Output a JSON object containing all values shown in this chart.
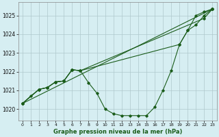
{
  "title": "Graphe pression niveau de la mer (hPa)",
  "xlim": [
    -0.5,
    23.5
  ],
  "ylim": [
    1019.4,
    1025.7
  ],
  "yticks": [
    1020,
    1021,
    1022,
    1023,
    1024,
    1025
  ],
  "xticks": [
    0,
    1,
    2,
    3,
    4,
    5,
    6,
    7,
    8,
    9,
    10,
    11,
    12,
    13,
    14,
    15,
    16,
    17,
    18,
    19,
    20,
    21,
    22,
    23
  ],
  "background_color": "#d6eef2",
  "grid_color": "#aec8cc",
  "line_color": "#1a5c1a",
  "main_x": [
    0,
    1,
    2,
    3,
    4,
    5,
    6,
    7,
    8,
    9,
    10,
    11,
    12,
    13,
    14,
    15,
    16,
    17,
    18,
    19,
    20,
    21,
    22,
    23
  ],
  "main_y": [
    1020.3,
    1020.7,
    1021.05,
    1021.15,
    1021.45,
    1021.5,
    1022.1,
    1022.05,
    1021.4,
    1020.85,
    1020.0,
    1019.75,
    1019.65,
    1019.65,
    1019.65,
    1019.65,
    1020.1,
    1021.0,
    1022.05,
    1023.45,
    1024.2,
    1025.0,
    1025.2,
    1025.35
  ],
  "line2_x": [
    0,
    2,
    3,
    4,
    5,
    6,
    7,
    22,
    23
  ],
  "line2_y": [
    1020.3,
    1021.05,
    1021.15,
    1021.45,
    1021.5,
    1022.1,
    1022.05,
    1024.85,
    1025.35
  ],
  "line3_x": [
    0,
    23
  ],
  "line3_y": [
    1020.3,
    1025.35
  ],
  "line4_x": [
    0,
    2,
    3,
    4,
    5,
    6,
    7,
    19,
    20,
    21,
    22,
    23
  ],
  "line4_y": [
    1020.3,
    1021.05,
    1021.15,
    1021.45,
    1021.5,
    1022.1,
    1022.05,
    1023.45,
    1024.2,
    1024.5,
    1025.0,
    1025.35
  ],
  "figsize": [
    3.2,
    2.0
  ],
  "dpi": 100
}
